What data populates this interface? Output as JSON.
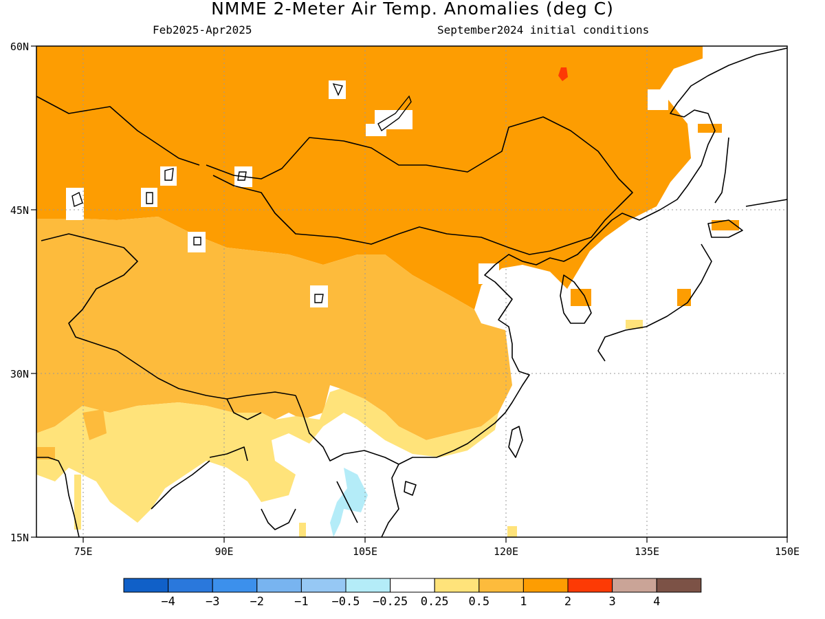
{
  "title": "NMME 2-Meter Air Temp. Anomalies (deg C)",
  "period": "Feb2025-Apr2025",
  "initial_conditions": "September2024 initial conditions",
  "map": {
    "lon_range": [
      70,
      150
    ],
    "lat_range": [
      15,
      60
    ],
    "lat_labels": [
      "60N",
      "45N",
      "30N",
      "15N"
    ],
    "lon_labels": [
      "75E",
      "90E",
      "105E",
      "120E",
      "135E",
      "150E"
    ]
  },
  "colorbar": {
    "labels": [
      "-4",
      "-3",
      "-2",
      "-1",
      "-0.5",
      "-0.25",
      "0.25",
      "0.5",
      "1",
      "2",
      "3",
      "4"
    ],
    "colors": [
      "#1060c8",
      "#2a78dc",
      "#3c90ec",
      "#78b4f0",
      "#96c8f4",
      "#b4ecf8",
      "#ffffff",
      "#ffe37a",
      "#fdbb3c",
      "#fd9d02",
      "#fd3a05",
      "#caa497",
      "#7c5246"
    ]
  }
}
